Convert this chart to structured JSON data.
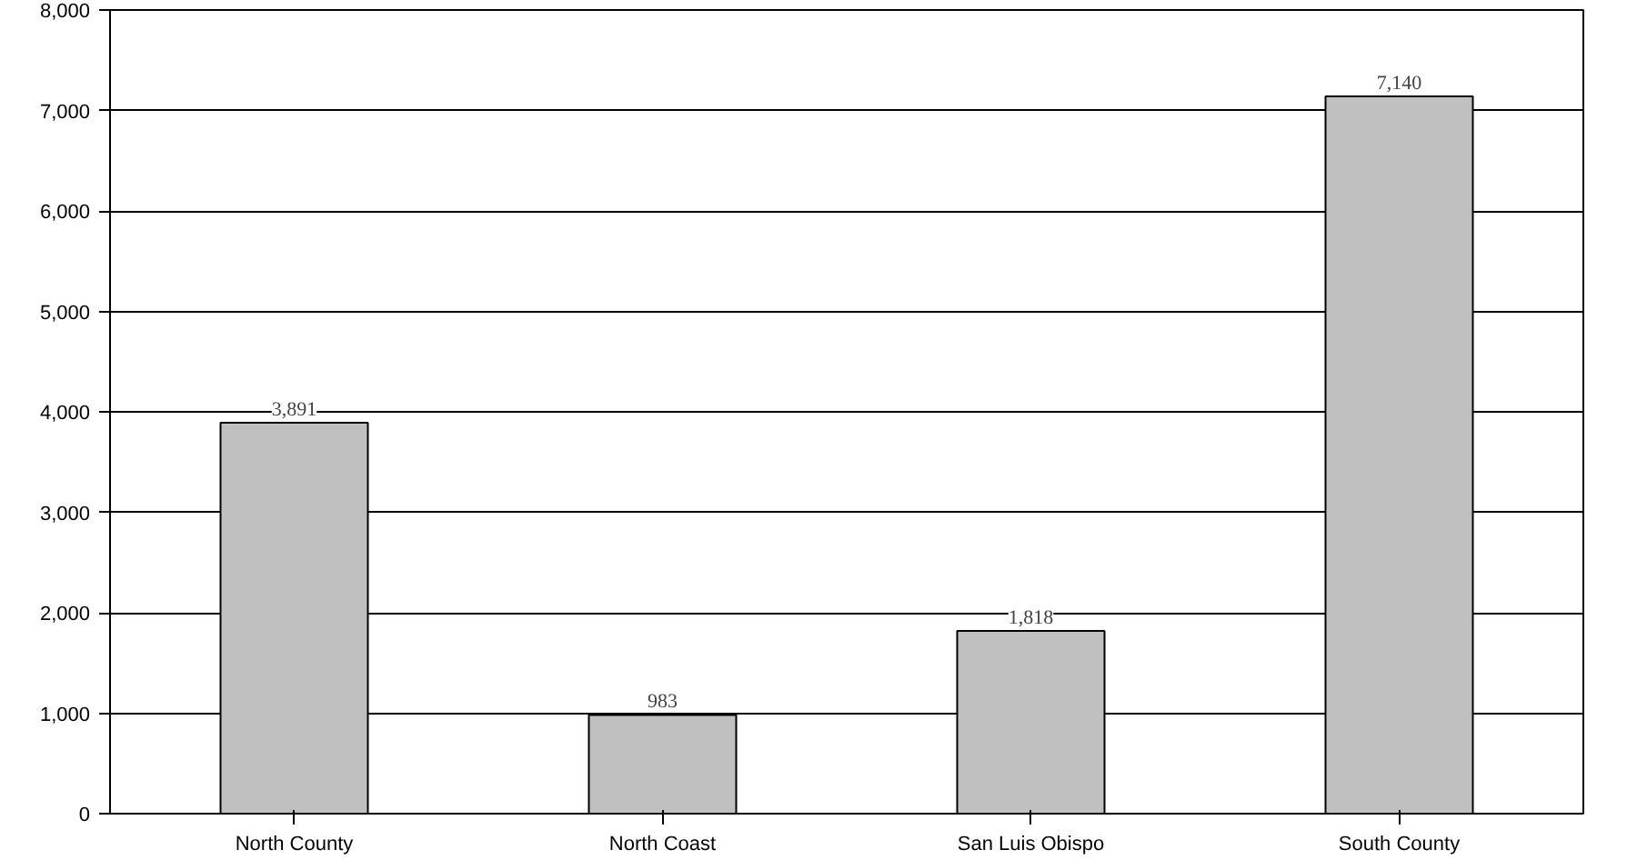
{
  "chart_data": {
    "type": "bar",
    "categories": [
      "North County",
      "North Coast",
      "San Luis Obispo",
      "South County"
    ],
    "values": [
      3891,
      983,
      1818,
      7140
    ],
    "value_labels": [
      "3,891",
      "983",
      "1,818",
      "7,140"
    ],
    "color": "#c0c0c0",
    "ylim": [
      0,
      8000
    ],
    "yticks": [
      0,
      {
        "value": 1000,
        "label": "1,000"
      },
      {
        "value": 2000,
        "label": "2,000"
      },
      {
        "value": 3000,
        "label": "3,000"
      },
      {
        "value": 4000,
        "label": "4,000"
      },
      {
        "value": 5000,
        "label": "5,000"
      },
      {
        "value": 6000,
        "label": "6,000"
      },
      {
        "value": 7000,
        "label": "7,000"
      },
      {
        "value": 8000,
        "label": "8,000"
      }
    ],
    "grid": "y"
  }
}
